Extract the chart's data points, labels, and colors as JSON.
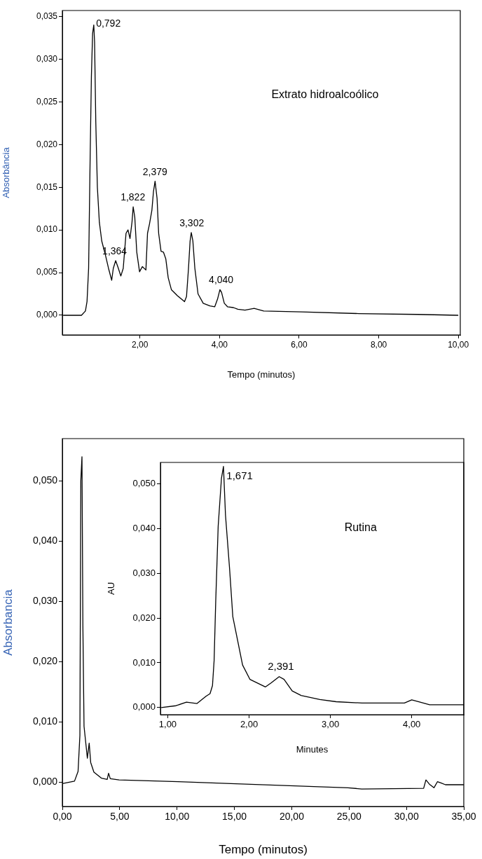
{
  "chart_data": [
    {
      "type": "line",
      "xlabel": "Tempo (minutos)",
      "ylabel": "Absorbância",
      "xlim": [
        0.05,
        10.05
      ],
      "ylim": [
        -0.0023,
        0.0357
      ],
      "xticks": [
        {
          "value": 2,
          "label": "2,00"
        },
        {
          "value": 4,
          "label": "4,00"
        },
        {
          "value": 6,
          "label": "6,00"
        },
        {
          "value": 8,
          "label": "8,00"
        },
        {
          "value": 10,
          "label": "10,00"
        }
      ],
      "yticks": [
        {
          "value": 0,
          "label": "0,000"
        },
        {
          "value": 0.005,
          "label": "0,005"
        },
        {
          "value": 0.01,
          "label": "0,010"
        },
        {
          "value": 0.015,
          "label": "0,015"
        },
        {
          "value": 0.02,
          "label": "0,020"
        },
        {
          "value": 0.025,
          "label": "0,025"
        },
        {
          "value": 0.03,
          "label": "0,030"
        },
        {
          "value": 0.035,
          "label": "0,035"
        }
      ],
      "series": [
        {
          "color": "#000000",
          "x": [
            0.07,
            0.42,
            0.53,
            0.63,
            0.67,
            0.71,
            0.75,
            0.78,
            0.81,
            0.84,
            0.86,
            0.89,
            0.93,
            0.98,
            1.04,
            1.13,
            1.21,
            1.29,
            1.33,
            1.39,
            1.45,
            1.52,
            1.58,
            1.65,
            1.7,
            1.75,
            1.8,
            1.83,
            1.87,
            1.92,
            1.99,
            2.06,
            2.15,
            2.19,
            2.24,
            2.3,
            2.34,
            2.38,
            2.43,
            2.47,
            2.53,
            2.59,
            2.65,
            2.71,
            2.79,
            2.94,
            3.12,
            3.17,
            3.22,
            3.26,
            3.29,
            3.33,
            3.38,
            3.46,
            3.59,
            3.76,
            3.88,
            3.95,
            4.01,
            4.05,
            4.12,
            4.2,
            4.35,
            4.46,
            4.64,
            4.87,
            5.11,
            6.05,
            7.5,
            8.98,
            10.0
          ],
          "values": [
            0,
            0,
            0,
            0.0005,
            0.0016,
            0.0055,
            0.019,
            0.028,
            0.033,
            0.034,
            0.032,
            0.0227,
            0.015,
            0.0109,
            0.0087,
            0.0071,
            0.0055,
            0.0041,
            0.0055,
            0.0064,
            0.0056,
            0.0046,
            0.0055,
            0.0096,
            0.01,
            0.009,
            0.0109,
            0.0127,
            0.0115,
            0.0074,
            0.0051,
            0.0057,
            0.0053,
            0.0096,
            0.0107,
            0.0123,
            0.0145,
            0.0157,
            0.0137,
            0.0096,
            0.0075,
            0.0074,
            0.0066,
            0.0044,
            0.003,
            0.0023,
            0.0016,
            0.0022,
            0.0055,
            0.0087,
            0.0097,
            0.0087,
            0.0055,
            0.0025,
            0.0014,
            0.0011,
            0.001,
            0.0019,
            0.003,
            0.0027,
            0.0014,
            0.001,
            0.0009,
            0.0007,
            0.0006,
            0.0008,
            0.0005,
            0.0004,
            0.0002,
            0.0001,
            0
          ]
        }
      ],
      "annotations": [
        {
          "text": "0,792",
          "x": 0.792,
          "y": 0.034
        },
        {
          "text": "1,364",
          "x": 1.364,
          "y": 0.0064
        },
        {
          "text": "1,822",
          "x": 1.822,
          "y": 0.0127
        },
        {
          "text": "2,379",
          "x": 2.379,
          "y": 0.0157
        },
        {
          "text": "3,302",
          "x": 3.302,
          "y": 0.0097
        },
        {
          "text": "4,040",
          "x": 4.04,
          "y": 0.003
        },
        "Extrato hidroalcoólico"
      ]
    },
    {
      "type": "line",
      "xlabel": "Tempo (minutos)",
      "ylabel": "Absorbancia",
      "xlim": [
        0,
        35
      ],
      "ylim": [
        -0.004,
        0.057
      ],
      "xticks": [
        {
          "value": 0,
          "label": "0,00"
        },
        {
          "value": 5,
          "label": "5,00"
        },
        {
          "value": 10,
          "label": "10,00"
        },
        {
          "value": 15,
          "label": "15,00"
        },
        {
          "value": 20,
          "label": "20,00"
        },
        {
          "value": 25,
          "label": "25,00"
        },
        {
          "value": 30,
          "label": "30,00"
        },
        {
          "value": 35,
          "label": "35,00"
        }
      ],
      "yticks": [
        {
          "value": 0,
          "label": "0,000"
        },
        {
          "value": 0.01,
          "label": "0,010"
        },
        {
          "value": 0.02,
          "label": "0,020"
        },
        {
          "value": 0.03,
          "label": "0,030"
        },
        {
          "value": 0.04,
          "label": "0,040"
        },
        {
          "value": 0.05,
          "label": "0,050"
        }
      ],
      "series": [
        {
          "color": "#000000",
          "x": [
            0,
            1.06,
            1.37,
            1.53,
            1.61,
            1.71,
            1.79,
            1.89,
            2.05,
            2.18,
            2.34,
            2.47,
            2.75,
            3.4,
            3.91,
            4.03,
            4.18,
            4.95,
            10.1,
            14.7,
            24.9,
            26.1,
            31.5,
            31.7,
            32.0,
            32.4,
            32.7,
            33.0,
            33.4,
            35.0
          ],
          "values": [
            -0.0002,
            0.0002,
            0.0018,
            0.0078,
            0.05,
            0.054,
            0.026,
            0.0093,
            0.0064,
            0.004,
            0.0065,
            0.0033,
            0.0017,
            0.0007,
            0.0005,
            0.0015,
            0.0006,
            0.0004,
            0.0001,
            -0.0002,
            -0.0009,
            -0.0011,
            -0.001,
            0.0004,
            -0.0003,
            -0.0009,
            0.0001,
            -0.0001,
            -0.0004,
            -0.0004
          ]
        }
      ]
    },
    {
      "type": "line",
      "xlabel": "Minutes",
      "ylabel": "AU",
      "xlim": [
        0.91,
        4.64
      ],
      "ylim": [
        -0.0016,
        0.0548
      ],
      "xticks": [
        {
          "value": 1,
          "label": "1,00"
        },
        {
          "value": 2,
          "label": "2,00"
        },
        {
          "value": 3,
          "label": "3,00"
        },
        {
          "value": 4,
          "label": "4,00"
        }
      ],
      "yticks": [
        {
          "value": 0,
          "label": "0,000"
        },
        {
          "value": 0.01,
          "label": "0,010"
        },
        {
          "value": 0.02,
          "label": "0,020"
        },
        {
          "value": 0.03,
          "label": "0,030"
        },
        {
          "value": 0.04,
          "label": "0,040"
        },
        {
          "value": 0.05,
          "label": "0,050"
        }
      ],
      "series": [
        {
          "color": "#000000",
          "x": [
            0.92,
            1.1,
            1.23,
            1.36,
            1.47,
            1.52,
            1.55,
            1.57,
            1.59,
            1.62,
            1.66,
            1.685,
            1.71,
            1.76,
            1.8,
            1.86,
            1.92,
            2.01,
            2.2,
            2.27,
            2.37,
            2.43,
            2.53,
            2.64,
            2.87,
            3.07,
            3.39,
            3.91,
            4.0,
            4.08,
            4.22,
            4.64
          ],
          "values": [
            0,
            0.0004,
            0.0012,
            0.0009,
            0.0025,
            0.0031,
            0.0049,
            0.0105,
            0.0238,
            0.0405,
            0.0512,
            0.0539,
            0.043,
            0.0311,
            0.0203,
            0.0149,
            0.0095,
            0.0063,
            0.0046,
            0.0055,
            0.0069,
            0.0063,
            0.0037,
            0.0027,
            0.0018,
            0.0013,
            0.001,
            0.001,
            0.0017,
            0.0013,
            0.0006,
            0.0006
          ]
        }
      ],
      "annotations": [
        {
          "text": "1,671",
          "x": 1.671,
          "y": 0.0539
        },
        {
          "text": "2,391",
          "x": 2.391,
          "y": 0.0069
        },
        "Rutina"
      ]
    }
  ]
}
